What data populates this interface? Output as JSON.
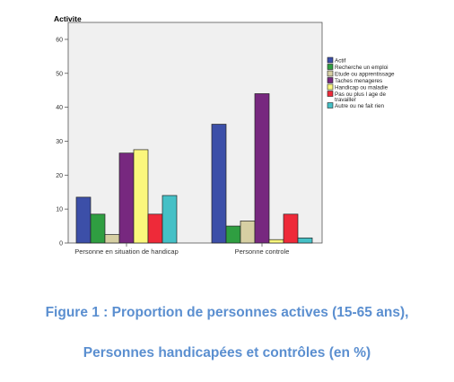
{
  "chart_data": {
    "type": "bar",
    "title": "Activite",
    "xlabel": "",
    "ylabel": "",
    "categories": [
      "Personne en situation de handicap",
      "Personne controle"
    ],
    "ylim": [
      0,
      65
    ],
    "yticks": [
      0,
      10,
      20,
      30,
      40,
      50,
      60
    ],
    "grid": false,
    "legend_position": "right",
    "series": [
      {
        "name": "Actif",
        "color": "#3c4fa8",
        "values": [
          13.5,
          35
        ]
      },
      {
        "name": "Recherche un emploi",
        "color": "#2f9e41",
        "values": [
          8.5,
          5
        ]
      },
      {
        "name": "Etude ou apprentissage",
        "color": "#d6cfa3",
        "values": [
          2.5,
          6.5
        ]
      },
      {
        "name": "Taches menageres",
        "color": "#77287f",
        "values": [
          26.5,
          44
        ]
      },
      {
        "name": "Handicap ou maladie",
        "color": "#fbf77c",
        "values": [
          27.5,
          1
        ]
      },
      {
        "name": "Pas ou plus l age de travailler",
        "color": "#ee2a39",
        "values": [
          8.5,
          8.5
        ]
      },
      {
        "name": "Autre ou ne fait rien",
        "color": "#45c0c6",
        "values": [
          14,
          1.5
        ]
      }
    ]
  },
  "caption": {
    "line1": "Figure 1 : Proportion de personnes actives (15-65 ans),",
    "line2": "Personnes handicapées et contrôles (en %)"
  }
}
